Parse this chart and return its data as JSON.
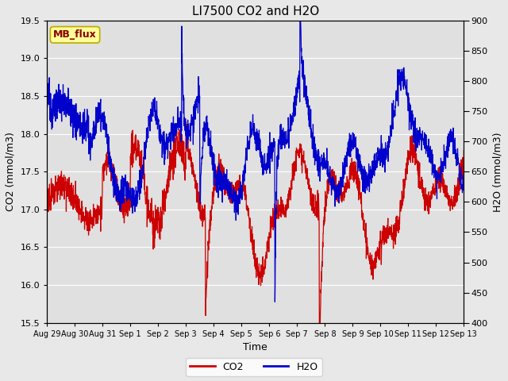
{
  "title": "LI7500 CO2 and H2O",
  "xlabel": "Time",
  "ylabel_left": "CO2 (mmol/m3)",
  "ylabel_right": "H2O (mmol/m3)",
  "co2_ylim": [
    15.5,
    19.5
  ],
  "h2o_ylim": [
    400,
    900
  ],
  "co2_yticks": [
    15.5,
    16.0,
    16.5,
    17.0,
    17.5,
    18.0,
    18.5,
    19.0,
    19.5
  ],
  "h2o_yticks": [
    400,
    450,
    500,
    550,
    600,
    650,
    700,
    750,
    800,
    850,
    900
  ],
  "co2_color": "#cc0000",
  "h2o_color": "#0000cc",
  "background_color": "#e8e8e8",
  "plot_bg_color": "#e0e0e0",
  "legend_label_co2": "CO2",
  "legend_label_h2o": "H2O",
  "annotation_text": "MB_flux",
  "annotation_bg": "#ffff99",
  "annotation_border": "#bbaa00",
  "grid_color": "#ffffff",
  "title_fontsize": 11,
  "axis_label_fontsize": 9,
  "tick_fontsize": 8,
  "legend_fontsize": 9,
  "line_width": 0.9,
  "xtick_labels": [
    "Aug 29",
    "Aug 30",
    "Aug 31",
    "Sep 1",
    "Sep 2",
    "Sep 3",
    "Sep 4",
    "Sep 5",
    "Sep 6",
    "Sep 7",
    "Sep 8",
    "Sep 9",
    "Sep 10",
    "Sep 11",
    "Sep 12",
    "Sep 13"
  ],
  "num_points": 2000
}
